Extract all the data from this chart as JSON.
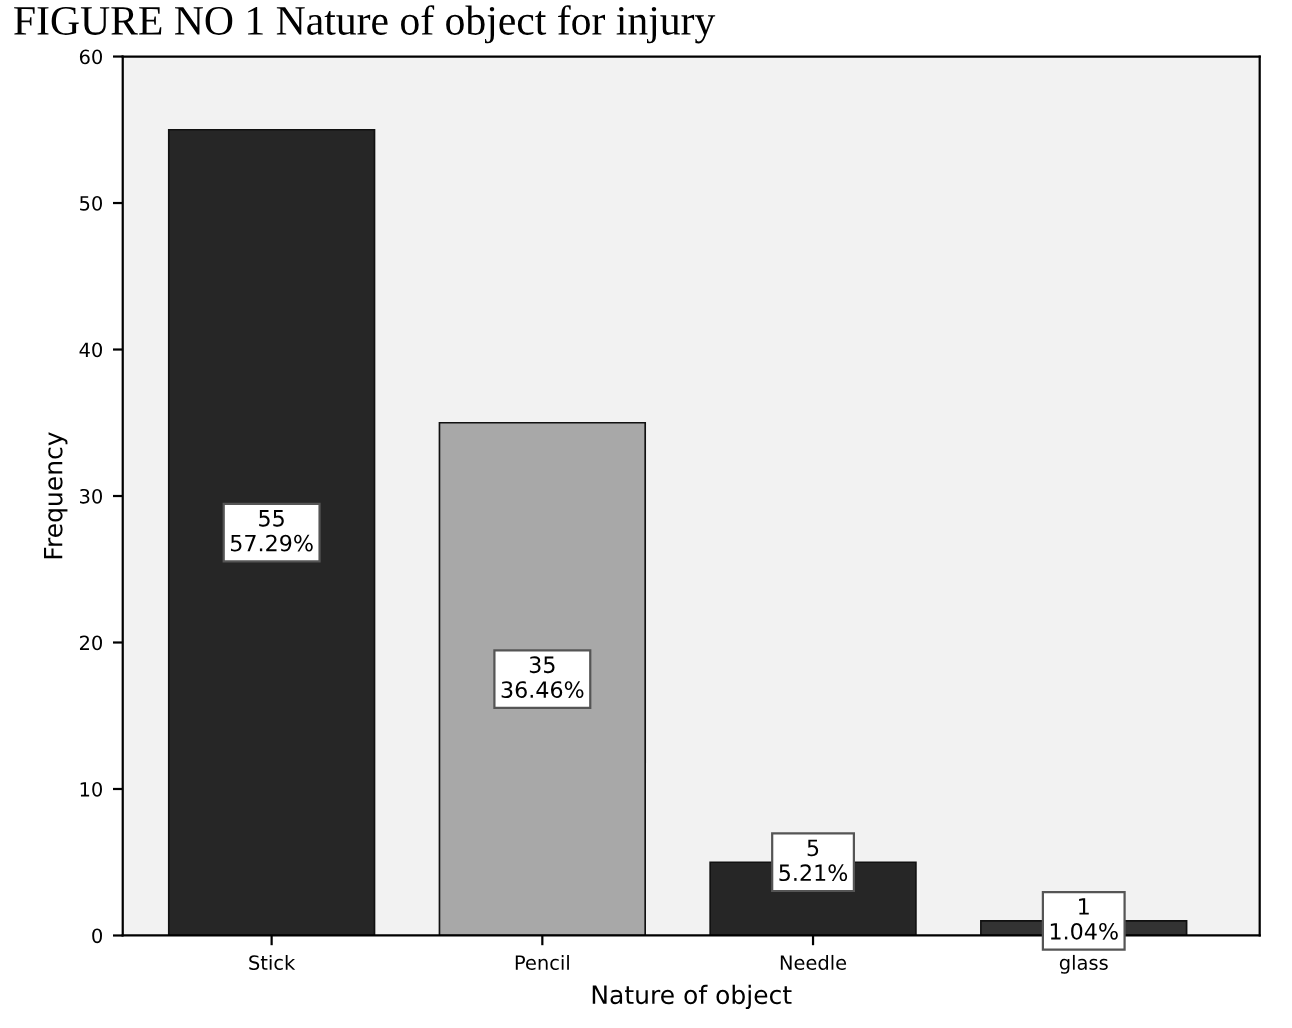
{
  "chart_data": {
    "type": "bar",
    "title": "FIGURE NO 1 Nature of object for injury",
    "xlabel": "Nature of object",
    "ylabel": "Frequency",
    "categories": [
      "Stick",
      "Pencil",
      "Needle",
      "glass"
    ],
    "values": [
      55,
      35,
      5,
      1
    ],
    "colors": [
      "#262626",
      "#a8a8a8",
      "#262626",
      "#333333"
    ],
    "value_labels": [
      "55\n57.29%",
      "35\n36.46%",
      "5\n5.21%",
      "1\n1.04%"
    ],
    "ylim": [
      0,
      60
    ],
    "yticks": [
      0,
      10,
      20,
      30,
      40,
      50,
      60
    ],
    "grid": false,
    "legend": false
  }
}
